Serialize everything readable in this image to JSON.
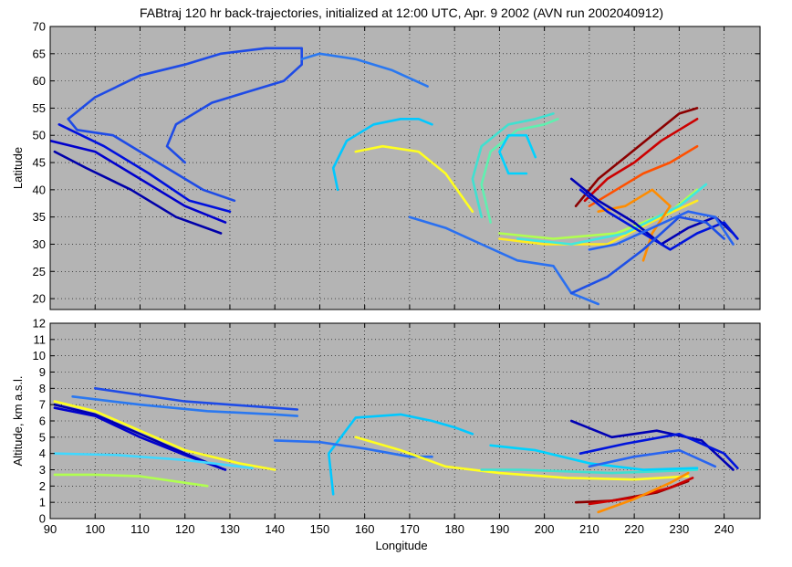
{
  "chart_data": [
    {
      "type": "line",
      "panel": "map",
      "title": "FABtraj 120 hr back-trajectories, initialized at 12:00 UTC, Apr. 9 2002 (AVN run 2002040912)",
      "xlabel": "",
      "ylabel": "Latitude",
      "xlim": [
        90,
        248
      ],
      "ylim": [
        18,
        70
      ],
      "yticks": [
        20,
        25,
        30,
        35,
        40,
        45,
        50,
        55,
        60,
        65,
        70
      ],
      "xticks": [
        90,
        100,
        110,
        120,
        130,
        140,
        150,
        160,
        170,
        180,
        190,
        200,
        210,
        220,
        230,
        240
      ],
      "grid": true,
      "background": "#b4b4b4",
      "series": [
        {
          "color": "#0000aa",
          "x": [
            128,
            118,
            108,
            98,
            91
          ],
          "y": [
            32,
            35,
            40,
            44,
            47
          ]
        },
        {
          "color": "#0000cc",
          "x": [
            129,
            120,
            110,
            100,
            90
          ],
          "y": [
            34,
            37,
            42,
            47,
            49
          ]
        },
        {
          "color": "#0010dd",
          "x": [
            130,
            121,
            112,
            102,
            92
          ],
          "y": [
            36,
            38,
            43,
            48,
            52
          ]
        },
        {
          "color": "#1e4be6",
          "x": [
            131,
            124,
            116,
            104,
            96,
            94,
            100,
            110,
            120,
            128,
            138,
            146,
            146,
            142,
            134,
            126,
            118,
            116,
            120
          ],
          "y": [
            38,
            40,
            44,
            50,
            51,
            53,
            57,
            61,
            63,
            65,
            66,
            66,
            63,
            60,
            58,
            56,
            52,
            48,
            45
          ]
        },
        {
          "color": "#2a78f0",
          "x": [
            146,
            150,
            158,
            166,
            174
          ],
          "y": [
            64,
            65,
            64,
            62,
            59
          ]
        },
        {
          "color": "#00c8ff",
          "x": [
            154,
            153,
            156,
            162,
            168,
            172,
            175
          ],
          "y": [
            40,
            44,
            49,
            52,
            53,
            53,
            52
          ]
        },
        {
          "color": "#ffff20",
          "x": [
            158,
            164,
            172,
            178,
            184
          ],
          "y": [
            47,
            48,
            47,
            43,
            36
          ]
        },
        {
          "color": "#2a70f0",
          "x": [
            170,
            178,
            186,
            194,
            202,
            206,
            212
          ],
          "y": [
            35,
            33,
            30,
            27,
            26,
            21,
            19
          ]
        },
        {
          "color": "#40e0d0",
          "x": [
            186,
            184,
            186,
            192,
            198,
            202
          ],
          "y": [
            35,
            42,
            48,
            52,
            53,
            54
          ]
        },
        {
          "color": "#60f0b0",
          "x": [
            188,
            186,
            188,
            194,
            200,
            203
          ],
          "y": [
            34,
            41,
            47,
            51,
            52,
            53
          ]
        },
        {
          "color": "#00d2ff",
          "x": [
            196,
            192,
            190,
            192,
            196,
            198
          ],
          "y": [
            43,
            43,
            47,
            50,
            50,
            46
          ]
        },
        {
          "color": "#ffeb20",
          "x": [
            190,
            200,
            214,
            226,
            234
          ],
          "y": [
            31,
            30,
            30,
            35,
            38
          ]
        },
        {
          "color": "#b0ff50",
          "x": [
            190,
            202,
            216,
            228,
            234
          ],
          "y": [
            32,
            31,
            32,
            36,
            40
          ]
        },
        {
          "color": "#40e8e0",
          "x": [
            194,
            206,
            218,
            230,
            236
          ],
          "y": [
            31,
            30,
            32,
            37,
            41
          ]
        },
        {
          "color": "#8b0000",
          "x": [
            207,
            212,
            218,
            224,
            230,
            234
          ],
          "y": [
            37,
            42,
            46,
            50,
            54,
            55
          ]
        },
        {
          "color": "#cc0000",
          "x": [
            209,
            214,
            220,
            226,
            232,
            234
          ],
          "y": [
            38,
            42,
            45,
            49,
            52,
            53
          ]
        },
        {
          "color": "#ff5000",
          "x": [
            210,
            216,
            222,
            228,
            234
          ],
          "y": [
            37,
            40,
            43,
            45,
            48
          ]
        },
        {
          "color": "#ff8c00",
          "x": [
            212,
            218,
            224,
            228,
            224,
            222
          ],
          "y": [
            36,
            37,
            40,
            37,
            32,
            27
          ]
        },
        {
          "color": "#0000b4",
          "x": [
            206,
            212,
            220,
            226,
            232,
            238,
            242
          ],
          "y": [
            42,
            38,
            34,
            30,
            33,
            35,
            32
          ]
        },
        {
          "color": "#0014dc",
          "x": [
            208,
            214,
            222,
            228,
            234,
            240,
            243
          ],
          "y": [
            40,
            36,
            32,
            29,
            32,
            34,
            31
          ]
        },
        {
          "color": "#2864f0",
          "x": [
            210,
            216,
            224,
            232,
            238,
            242
          ],
          "y": [
            29,
            30,
            33,
            36,
            35,
            30
          ]
        },
        {
          "color": "#1e50e6",
          "x": [
            206,
            214,
            222,
            230,
            236,
            240
          ],
          "y": [
            21,
            24,
            29,
            35,
            34,
            31
          ]
        }
      ]
    },
    {
      "type": "line",
      "panel": "altitude",
      "title": "",
      "xlabel": "Longitude",
      "ylabel": "Altitude, km a.s.l.",
      "xlim": [
        90,
        248
      ],
      "ylim": [
        0,
        12
      ],
      "yticks": [
        0,
        1,
        2,
        3,
        4,
        5,
        6,
        7,
        8,
        9,
        10,
        11,
        12
      ],
      "xticks": [
        90,
        100,
        110,
        120,
        130,
        140,
        150,
        160,
        170,
        180,
        190,
        200,
        210,
        220,
        230,
        240
      ],
      "grid": true,
      "background": "#b4b4b4",
      "series": [
        {
          "color": "#0000aa",
          "x": [
            91,
            100,
            110,
            120,
            128
          ],
          "y": [
            7.0,
            6.4,
            5.2,
            4.0,
            3.1
          ]
        },
        {
          "color": "#0000cc",
          "x": [
            91,
            100,
            110,
            120,
            129
          ],
          "y": [
            6.8,
            6.3,
            5.0,
            3.9,
            3.0
          ]
        },
        {
          "color": "#1e4be6",
          "x": [
            100,
            110,
            120,
            130,
            140,
            145
          ],
          "y": [
            8.0,
            7.6,
            7.2,
            7.0,
            6.8,
            6.7
          ]
        },
        {
          "color": "#2a78f0",
          "x": [
            95,
            110,
            125,
            140,
            145
          ],
          "y": [
            7.5,
            7.0,
            6.6,
            6.4,
            6.3
          ]
        },
        {
          "color": "#ffff20",
          "x": [
            91,
            100,
            110,
            120,
            132,
            140
          ],
          "y": [
            7.2,
            6.6,
            5.4,
            4.2,
            3.4,
            3.0
          ]
        },
        {
          "color": "#b0ff50",
          "x": [
            91,
            100,
            110,
            125
          ],
          "y": [
            2.7,
            2.7,
            2.6,
            2.0
          ]
        },
        {
          "color": "#40d8ff",
          "x": [
            91,
            105,
            120,
            135
          ],
          "y": [
            4.0,
            3.9,
            3.6,
            3.1
          ]
        },
        {
          "color": "#00c8ff",
          "x": [
            153,
            152,
            158,
            168,
            175,
            180,
            184
          ],
          "y": [
            1.5,
            4.0,
            6.2,
            6.4,
            6.0,
            5.6,
            5.2
          ]
        },
        {
          "color": "#2a70f0",
          "x": [
            140,
            150,
            160,
            170,
            175
          ],
          "y": [
            4.8,
            4.7,
            4.3,
            3.8,
            3.8
          ]
        },
        {
          "color": "#ffff20",
          "x": [
            158,
            168,
            178,
            190,
            205,
            220,
            232
          ],
          "y": [
            5.0,
            4.2,
            3.2,
            2.8,
            2.5,
            2.4,
            2.6
          ]
        },
        {
          "color": "#40e0d0",
          "x": [
            186,
            195,
            205,
            215,
            225,
            234
          ],
          "y": [
            3.0,
            3.0,
            2.9,
            2.8,
            2.9,
            3.0
          ]
        },
        {
          "color": "#00d2ff",
          "x": [
            188,
            198,
            210,
            222,
            234
          ],
          "y": [
            4.5,
            4.2,
            3.4,
            3.0,
            3.1
          ]
        },
        {
          "color": "#8b0000",
          "x": [
            207,
            215,
            225,
            232
          ],
          "y": [
            1.0,
            1.1,
            1.6,
            2.3
          ]
        },
        {
          "color": "#cc0000",
          "x": [
            210,
            220,
            228,
            233
          ],
          "y": [
            0.9,
            1.3,
            1.9,
            2.5
          ]
        },
        {
          "color": "#ff8c00",
          "x": [
            212,
            220,
            228,
            232
          ],
          "y": [
            0.4,
            1.2,
            2.2,
            2.8
          ]
        },
        {
          "color": "#0000b4",
          "x": [
            206,
            215,
            225,
            235,
            242
          ],
          "y": [
            6.0,
            5.0,
            5.4,
            4.8,
            3.0
          ]
        },
        {
          "color": "#0014dc",
          "x": [
            208,
            218,
            230,
            240,
            243
          ],
          "y": [
            4.0,
            4.6,
            5.2,
            4.0,
            3.1
          ]
        },
        {
          "color": "#2864f0",
          "x": [
            210,
            220,
            230,
            238
          ],
          "y": [
            3.2,
            3.8,
            4.2,
            3.2
          ]
        }
      ]
    }
  ]
}
